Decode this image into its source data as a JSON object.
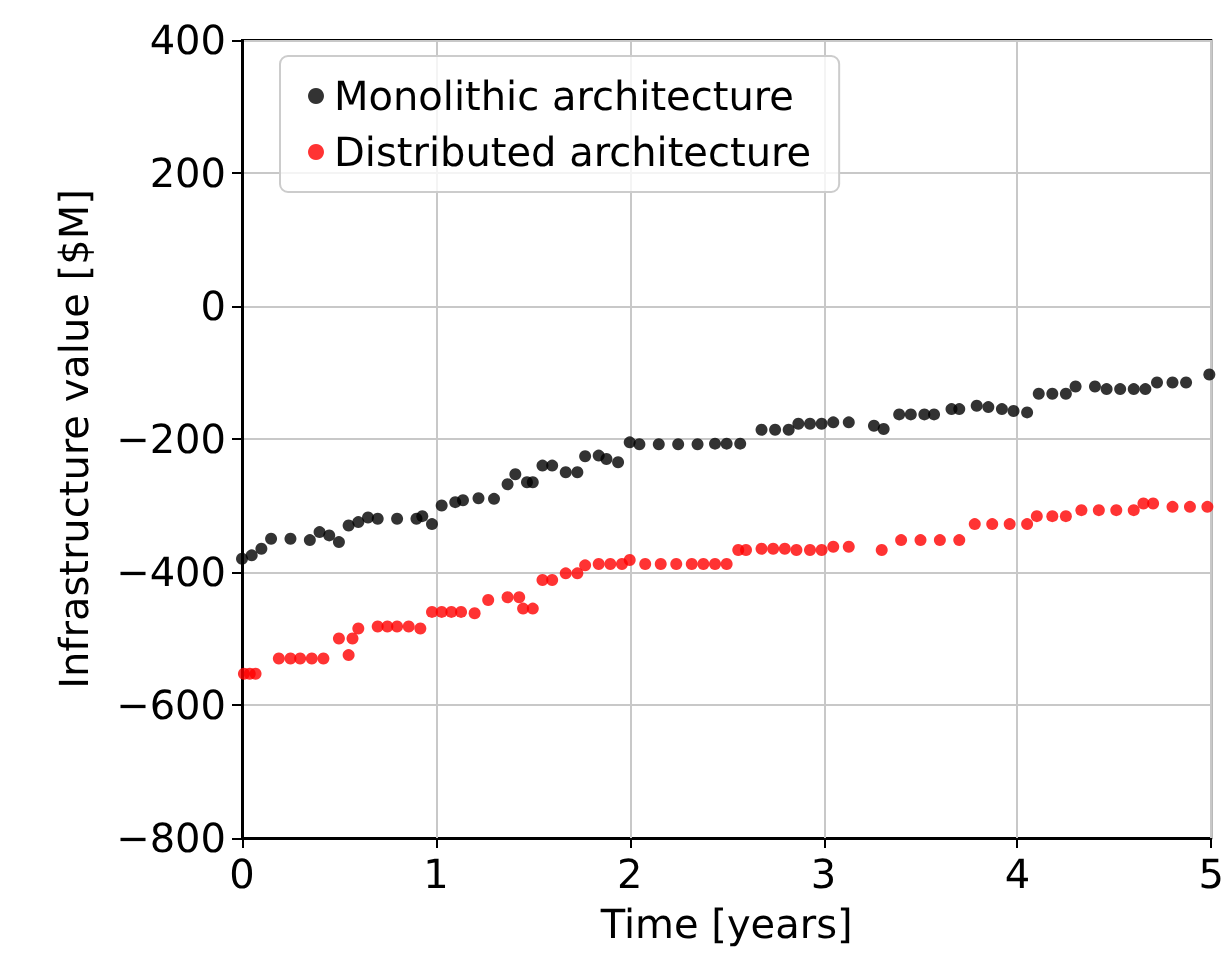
{
  "chart_data": {
    "type": "scatter",
    "xlabel": "Time [years]",
    "ylabel": "Infrastructure value [$M]",
    "xlim": [
      0,
      5
    ],
    "xticks": [
      0,
      1,
      2,
      3,
      4,
      5
    ],
    "ylim": [
      -800,
      400
    ],
    "yticks": [
      -800,
      -600,
      -400,
      -200,
      0,
      200,
      400
    ],
    "grid": true,
    "legend": "top left",
    "marker": "circle",
    "series": [
      {
        "name": "Monolithic architecture",
        "color": "#000000",
        "x": [
          0,
          0.05,
          0.1,
          0.15,
          0.25,
          0.35,
          0.4,
          0.45,
          0.5,
          0.55,
          0.6,
          0.65,
          0.7,
          0.8,
          0.9,
          0.93,
          0.98,
          1.03,
          1.1,
          1.14,
          1.22,
          1.3,
          1.37,
          1.41,
          1.47,
          1.5,
          1.55,
          1.6,
          1.67,
          1.73,
          1.77,
          1.84,
          1.88,
          1.94,
          2.0,
          2.05,
          2.15,
          2.25,
          2.35,
          2.44,
          2.5,
          2.57,
          2.68,
          2.75,
          2.82,
          2.87,
          2.93,
          2.99,
          3.05,
          3.13,
          3.26,
          3.31,
          3.39,
          3.45,
          3.52,
          3.57,
          3.66,
          3.7,
          3.79,
          3.85,
          3.92,
          3.98,
          4.05,
          4.11,
          4.18,
          4.25,
          4.3,
          4.4,
          4.46,
          4.53,
          4.6,
          4.66,
          4.72,
          4.8,
          4.87,
          4.99
        ],
        "values": [
          -380,
          -375,
          -365,
          -350,
          -350,
          -352,
          -340,
          -345,
          -355,
          -330,
          -325,
          -318,
          -320,
          -320,
          -320,
          -316,
          -328,
          -300,
          -295,
          -292,
          -289,
          -290,
          -268,
          -253,
          -265,
          -265,
          -240,
          -240,
          -250,
          -250,
          -226,
          -225,
          -230,
          -235,
          -205,
          -208,
          -208,
          -208,
          -208,
          -207,
          -207,
          -207,
          -186,
          -186,
          -186,
          -177,
          -177,
          -177,
          -175,
          -175,
          -180,
          -185,
          -163,
          -163,
          -163,
          -163,
          -155,
          -155,
          -150,
          -152,
          -155,
          -158,
          -160,
          -132,
          -132,
          -132,
          -121,
          -121,
          -125,
          -125,
          -125,
          -125,
          -115,
          -115,
          -115,
          -103
        ]
      },
      {
        "name": "Distributed architecture",
        "color": "#ff0000",
        "x": [
          0.01,
          0.04,
          0.07,
          0.19,
          0.25,
          0.3,
          0.36,
          0.42,
          0.5,
          0.55,
          0.57,
          0.6,
          0.7,
          0.75,
          0.8,
          0.86,
          0.92,
          0.98,
          1.03,
          1.08,
          1.13,
          1.2,
          1.27,
          1.37,
          1.43,
          1.45,
          1.5,
          1.55,
          1.6,
          1.67,
          1.73,
          1.77,
          1.84,
          1.9,
          1.96,
          2.0,
          2.08,
          2.16,
          2.24,
          2.32,
          2.38,
          2.44,
          2.5,
          2.56,
          2.6,
          2.68,
          2.74,
          2.8,
          2.86,
          2.93,
          2.99,
          3.05,
          3.13,
          3.3,
          3.4,
          3.5,
          3.6,
          3.7,
          3.78,
          3.87,
          3.96,
          4.05,
          4.1,
          4.18,
          4.25,
          4.33,
          4.42,
          4.51,
          4.6,
          4.65,
          4.7,
          4.8,
          4.89,
          4.98
        ],
        "values": [
          -553,
          -553,
          -553,
          -530,
          -530,
          -530,
          -530,
          -530,
          -500,
          -525,
          -500,
          -485,
          -482,
          -482,
          -482,
          -482,
          -485,
          -460,
          -460,
          -460,
          -460,
          -462,
          -442,
          -438,
          -438,
          -455,
          -455,
          -412,
          -412,
          -402,
          -402,
          -390,
          -388,
          -388,
          -388,
          -382,
          -388,
          -388,
          -388,
          -388,
          -388,
          -388,
          -388,
          -367,
          -367,
          -365,
          -365,
          -365,
          -367,
          -367,
          -367,
          -362,
          -362,
          -367,
          -352,
          -352,
          -352,
          -352,
          -328,
          -328,
          -328,
          -328,
          -316,
          -316,
          -316,
          -307,
          -307,
          -307,
          -307,
          -297,
          -297,
          -302,
          -302,
          -302
        ]
      }
    ]
  }
}
